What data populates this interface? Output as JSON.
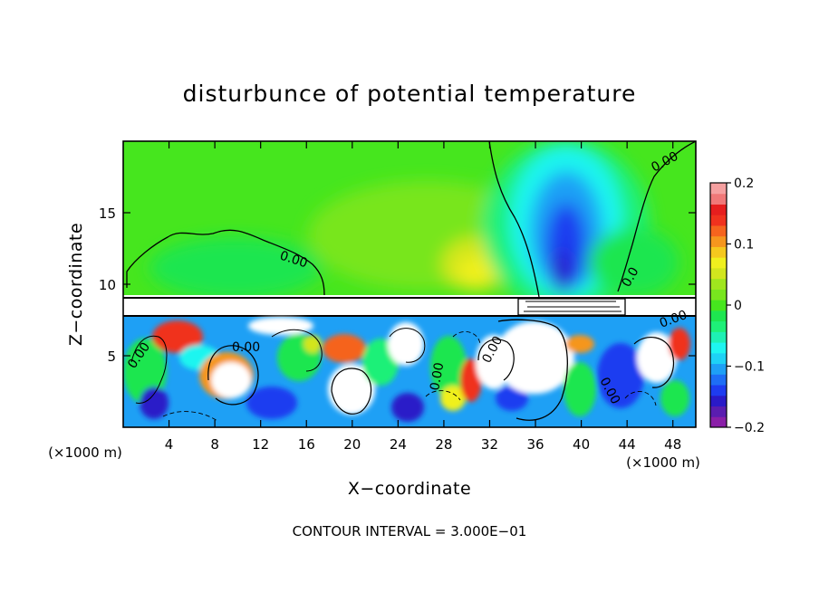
{
  "chart_data": {
    "type": "heatmap",
    "title": "disturbunce of potential temperature",
    "xlabel": "X−coordinate",
    "ylabel": "Z−coordinate",
    "x_unit_left": "(×1000 m)",
    "x_unit_right": "(×1000 m)",
    "xlim": [
      0,
      50
    ],
    "ylim": [
      0,
      20
    ],
    "x_ticks": [
      4,
      8,
      12,
      16,
      20,
      24,
      28,
      32,
      36,
      40,
      44,
      48
    ],
    "y_ticks": [
      5,
      10,
      15
    ],
    "colorbar": {
      "range": [
        -0.2,
        0.2
      ],
      "tick_values": [
        0.2,
        0.1,
        0,
        -0.1,
        -0.2
      ],
      "tick_labels": [
        "0.2",
        "0.1",
        "0",
        "−0.1",
        "−0.2"
      ],
      "colors": [
        "#8a1fa8",
        "#5a1db0",
        "#2a1ac8",
        "#1e3cf0",
        "#1e6ef5",
        "#1ea0f5",
        "#1ed2f5",
        "#1ef5f0",
        "#1ef0b4",
        "#1ef078",
        "#1ee650",
        "#46e61e",
        "#78e61e",
        "#a0e61e",
        "#d2e61e",
        "#f0f01e",
        "#f5c81e",
        "#f5961e",
        "#f5641e",
        "#f0321e",
        "#e61e1e",
        "#f07878",
        "#f5a0a0"
      ]
    },
    "contour_labels": [
      "0.00",
      "0.00",
      "0.00",
      "0.00",
      "0.00",
      "0.00",
      "0.00",
      "0.00",
      "0.0"
    ],
    "footnote": "CONTOUR INTERVAL = 3.000E−01",
    "grid": false
  }
}
